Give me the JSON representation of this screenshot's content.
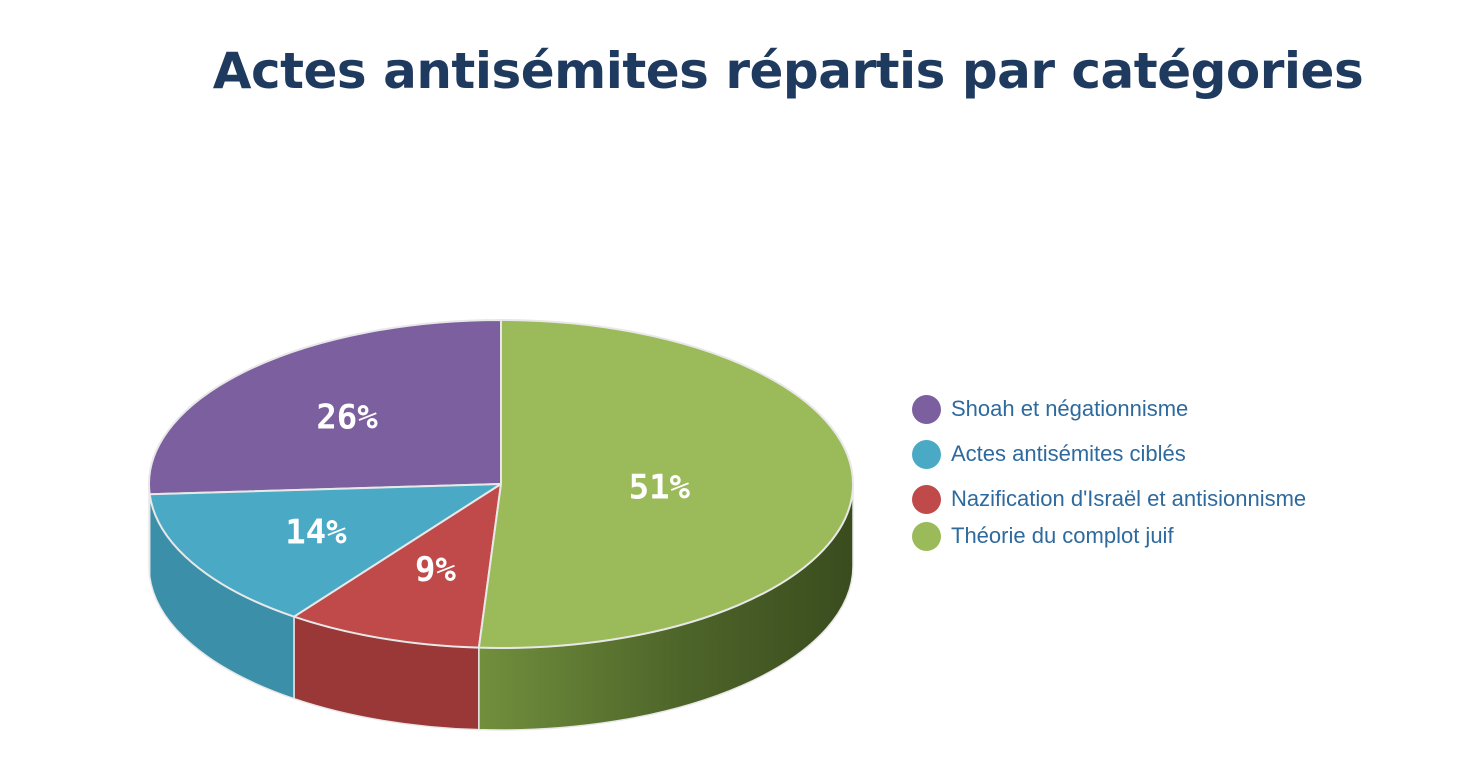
{
  "title": "Actes antisémites répartis par catégories",
  "chart_data": {
    "type": "pie",
    "title": "Actes antisémites répartis par catégories",
    "slices": [
      {
        "label": "Shoah et négationnisme",
        "value": 26,
        "display": "26%",
        "color": "#7c5f9e"
      },
      {
        "label": "Actes antisémites ciblés",
        "value": 14,
        "display": "14%",
        "color": "#4aa9c4"
      },
      {
        "label": "Nazification d'Israël et antisionnisme",
        "value": 9,
        "display": "9%",
        "color": "#c04a4a"
      },
      {
        "label": "Théorie du complot juif",
        "value": 51,
        "display": "51%",
        "color": "#9bba59"
      }
    ],
    "legend_position": "right",
    "style": "3d"
  }
}
